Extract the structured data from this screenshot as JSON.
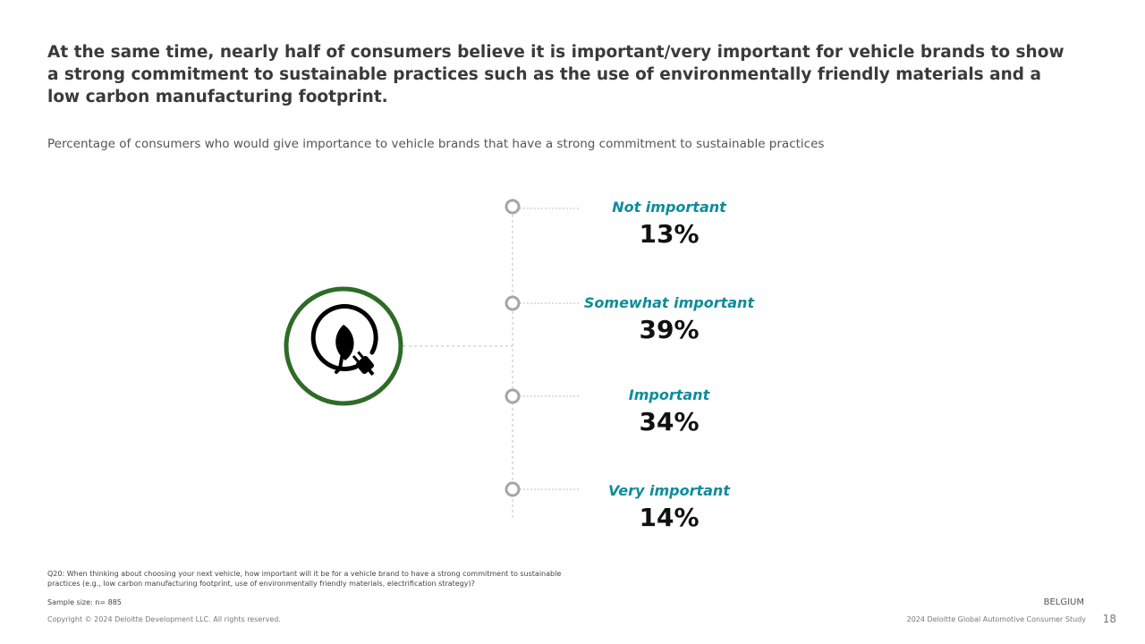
{
  "headline": "At the same time, nearly half of consumers believe it is important/very important for vehicle brands to show a strong commitment to sustainable practices such as the use of environmentally friendly materials and a low carbon manufacturing footprint.",
  "subtitle": "Percentage of consumers who would give importance to vehicle brands that have a strong commitment to sustainable practices",
  "icon": {
    "name": "leaf-plug-icon",
    "ring_color": "#2e6b27",
    "glyph_color": "#000000"
  },
  "colors": {
    "label": "#0e8c9a",
    "value": "#111111",
    "marker": "#a6a6a6",
    "line": "#bfbfbf"
  },
  "categories": [
    {
      "label": "Not important",
      "value": "13%"
    },
    {
      "label": "Somewhat important",
      "value": "39%"
    },
    {
      "label": "Important",
      "value": "34%"
    },
    {
      "label": "Very important",
      "value": "14%"
    }
  ],
  "footer": {
    "question": "Q20: When thinking about choosing your next vehicle, how important will it be for a vehicle brand to have a strong commitment to sustainable practices (e.g., low carbon manufacturing footprint, use of environmentally friendly materials, electrification strategy)?",
    "sample": "Sample size: n= 885",
    "copyright": "Copyright © 2024 Deloitte Development LLC. All rights reserved.",
    "country": "BELGIUM",
    "study": "2024 Deloitte Global Automotive Consumer Study",
    "page": "18"
  }
}
